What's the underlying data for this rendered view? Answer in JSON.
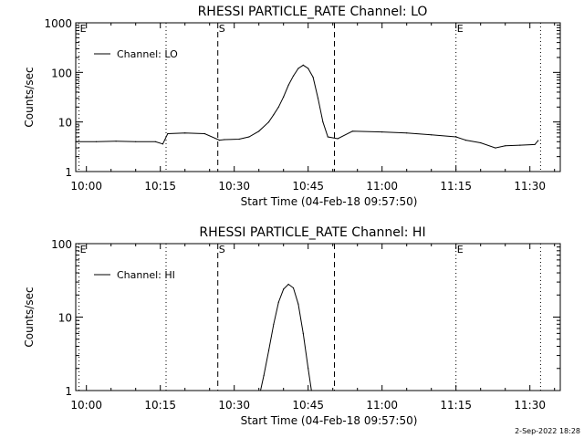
{
  "chart_data": [
    {
      "type": "line",
      "title": "RHESSI PARTICLE_RATE Channel: LO",
      "xlabel": "Start Time (04-Feb-18 09:57:50)",
      "ylabel": "Counts/sec",
      "scale_y": "log",
      "ylim": [
        1,
        1000
      ],
      "xlim": [
        "09:57:50",
        "11:36:10"
      ],
      "x_ticks": [
        "10:00",
        "10:15",
        "10:30",
        "10:45",
        "11:00",
        "11:15",
        "11:30"
      ],
      "y_ticks": [
        "1",
        "10",
        "100",
        "1000"
      ],
      "legend": "Channel: LO",
      "legend_position": "top-left",
      "markers": [
        {
          "label": "E",
          "time": "09:58:30",
          "style": "dotted"
        },
        {
          "label": "",
          "time": "10:16:10",
          "style": "dotted"
        },
        {
          "label": "S",
          "time": "10:26:40",
          "style": "dashed"
        },
        {
          "label": "",
          "time": "10:50:20",
          "style": "dashed"
        },
        {
          "label": "E",
          "time": "11:15:00",
          "style": "dotted"
        },
        {
          "label": "",
          "time": "11:32:10",
          "style": "dotted"
        }
      ],
      "series": [
        {
          "name": "Channel: LO",
          "x": [
            "09:57:50",
            "10:02:00",
            "10:06:00",
            "10:10:00",
            "10:14:00",
            "10:15:30",
            "10:16:30",
            "10:20:00",
            "10:24:00",
            "10:27:00",
            "10:28:00",
            "10:31:00",
            "10:33:00",
            "10:35:00",
            "10:37:00",
            "10:38:00",
            "10:39:00",
            "10:40:00",
            "10:41:00",
            "10:42:00",
            "10:43:00",
            "10:44:00",
            "10:45:00",
            "10:46:00",
            "10:47:00",
            "10:48:00",
            "10:49:00",
            "10:51:00",
            "10:54:00",
            "11:00:00",
            "11:05:00",
            "11:10:00",
            "11:15:00",
            "11:17:00",
            "11:20:00",
            "11:23:00",
            "11:25:00",
            "11:28:00",
            "11:31:00",
            "11:31:40"
          ],
          "values": [
            4,
            4,
            4.1,
            4,
            4,
            3.6,
            5.8,
            6,
            5.8,
            4.3,
            4.4,
            4.5,
            5,
            6.5,
            10,
            14,
            20,
            32,
            55,
            85,
            120,
            140,
            120,
            80,
            30,
            10,
            5,
            4.6,
            6.5,
            6.3,
            6,
            5.5,
            5,
            4.3,
            3.8,
            3,
            3.3,
            3.4,
            3.5,
            4.2
          ]
        }
      ]
    },
    {
      "type": "line",
      "title": "RHESSI PARTICLE_RATE Channel: HI",
      "xlabel": "Start Time (04-Feb-18 09:57:50)",
      "ylabel": "Counts/sec",
      "scale_y": "log",
      "ylim": [
        1,
        100
      ],
      "xlim": [
        "09:57:50",
        "11:36:10"
      ],
      "x_ticks": [
        "10:00",
        "10:15",
        "10:30",
        "10:45",
        "11:00",
        "11:15",
        "11:30"
      ],
      "y_ticks": [
        "1",
        "10",
        "100"
      ],
      "legend": "Channel: HI",
      "legend_position": "top-left",
      "markers": [
        {
          "label": "E",
          "time": "09:58:30",
          "style": "dotted"
        },
        {
          "label": "",
          "time": "10:16:10",
          "style": "dotted"
        },
        {
          "label": "S",
          "time": "10:26:40",
          "style": "dashed"
        },
        {
          "label": "",
          "time": "10:50:20",
          "style": "dashed"
        },
        {
          "label": "E",
          "time": "11:15:00",
          "style": "dotted"
        },
        {
          "label": "",
          "time": "11:32:10",
          "style": "dotted"
        }
      ],
      "series": [
        {
          "name": "Channel: HI",
          "x": [
            "10:35:20",
            "10:36:00",
            "10:37:00",
            "10:38:00",
            "10:39:00",
            "10:40:00",
            "10:41:00",
            "10:42:00",
            "10:43:00",
            "10:44:00",
            "10:45:00",
            "10:45:40"
          ],
          "values": [
            1,
            1.6,
            3.5,
            8,
            16,
            24,
            28,
            25,
            15,
            6,
            2,
            1
          ]
        }
      ]
    }
  ],
  "footer_timestamp": "2-Sep-2022 18:28"
}
